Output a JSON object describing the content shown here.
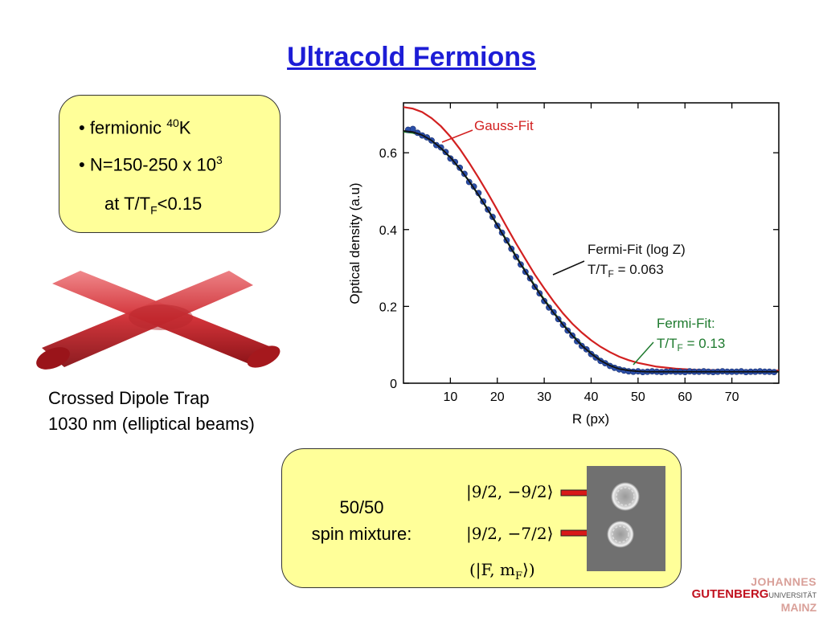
{
  "slide": {
    "title": "Ultracold Fermions"
  },
  "info_box": {
    "bullet1_prefix": "• fermionic ",
    "bullet1_sup": "40",
    "bullet1_suffix": "K",
    "bullet2_prefix": "• N=150-250 x 10",
    "bullet2_sup": "3",
    "bullet3_prefix": "at T/T",
    "bullet3_sub": "F",
    "bullet3_suffix": "<0.15"
  },
  "trap": {
    "caption_line1": "Crossed Dipole Trap",
    "caption_line2": "1030 nm (elliptical beams)",
    "beam_color": "#cc2a30"
  },
  "spin_box": {
    "text_line1": "50/50",
    "text_line2": "spin mixture:",
    "ket1": "|9/2, −9/2⟩",
    "ket2": "|9/2, −7/2⟩",
    "notation": "(|F, m",
    "notation_sub": "F",
    "notation_end": "⟩)",
    "arrow_color": "#d81818"
  },
  "logo": {
    "line1": "JOHANNES",
    "line2": "GUTENBERG",
    "line2_small": "UNIVERSITÄT",
    "line3": "MAINZ"
  },
  "chart_data": {
    "type": "line",
    "xlabel": "R (px)",
    "ylabel": "Optical density (a.u)",
    "xlim": [
      0,
      80
    ],
    "ylim": [
      0,
      0.73
    ],
    "xticks": [
      10,
      20,
      30,
      40,
      50,
      60,
      70
    ],
    "yticks": [
      0,
      0.2,
      0.4,
      0.6
    ],
    "ytick_labels": [
      "0",
      "0.2",
      "0.4",
      "0.6"
    ],
    "grid": false,
    "series": [
      {
        "name": "Gauss-Fit",
        "color": "#d22020",
        "x": [
          0,
          2,
          4,
          6,
          8,
          10,
          12,
          14,
          16,
          18,
          20,
          22,
          24,
          26,
          28,
          30,
          32,
          34,
          36,
          38,
          40,
          42,
          44,
          46,
          48,
          50,
          54,
          58,
          62,
          66,
          70,
          74,
          80
        ],
        "y": [
          0.719,
          0.715,
          0.706,
          0.69,
          0.669,
          0.642,
          0.61,
          0.574,
          0.535,
          0.494,
          0.451,
          0.407,
          0.364,
          0.323,
          0.283,
          0.247,
          0.213,
          0.182,
          0.155,
          0.132,
          0.112,
          0.095,
          0.081,
          0.069,
          0.06,
          0.053,
          0.043,
          0.038,
          0.035,
          0.034,
          0.033,
          0.033,
          0.033
        ]
      },
      {
        "name": "Fermi-Fit (log Z)",
        "annotation": "T/T",
        "annotation_sub": "F",
        "annotation_value": " = 0.063",
        "color": "#111111",
        "x": [
          0,
          2,
          4,
          6,
          8,
          10,
          12,
          14,
          16,
          18,
          20,
          22,
          24,
          26,
          28,
          30,
          32,
          34,
          36,
          38,
          40,
          42,
          44,
          46,
          48,
          50,
          52,
          56,
          60,
          70,
          80
        ],
        "y": [
          0.657,
          0.654,
          0.646,
          0.632,
          0.612,
          0.588,
          0.559,
          0.526,
          0.49,
          0.451,
          0.411,
          0.37,
          0.329,
          0.29,
          0.252,
          0.216,
          0.183,
          0.152,
          0.124,
          0.098,
          0.077,
          0.059,
          0.046,
          0.037,
          0.033,
          0.031,
          0.03,
          0.03,
          0.03,
          0.03,
          0.03
        ]
      },
      {
        "name": "Fermi-Fit:",
        "annotation": "T/T",
        "annotation_sub": "F",
        "annotation_value": " = 0.13",
        "color": "#1e7a2e",
        "x": [
          0,
          2,
          4,
          6,
          8,
          10,
          12,
          14,
          16,
          18,
          20,
          22,
          24,
          26,
          28,
          30,
          32,
          34,
          36,
          38,
          40,
          42,
          44,
          46,
          48,
          50,
          52,
          56,
          60,
          70,
          80
        ],
        "y": [
          0.655,
          0.652,
          0.644,
          0.63,
          0.611,
          0.587,
          0.558,
          0.526,
          0.49,
          0.452,
          0.412,
          0.372,
          0.331,
          0.292,
          0.254,
          0.218,
          0.185,
          0.154,
          0.126,
          0.101,
          0.08,
          0.062,
          0.049,
          0.04,
          0.035,
          0.032,
          0.031,
          0.03,
          0.03,
          0.03,
          0.03
        ]
      },
      {
        "name": "data",
        "color": "#2a4ea8",
        "x": [
          1,
          2,
          3,
          4,
          5,
          6,
          7,
          8,
          9,
          10,
          11,
          12,
          13,
          14,
          15,
          16,
          17,
          18,
          19,
          20,
          21,
          22,
          23,
          24,
          25,
          26,
          27,
          28,
          29,
          30,
          31,
          32,
          33,
          34,
          35,
          36,
          37,
          38,
          39,
          40,
          41,
          42,
          43,
          44,
          45,
          46,
          47,
          48,
          49,
          50,
          51,
          52,
          53,
          54,
          55,
          56,
          57,
          58,
          59,
          60,
          61,
          62,
          63,
          64,
          65,
          66,
          67,
          68,
          69,
          70,
          71,
          72,
          73,
          74,
          75,
          76,
          77,
          78,
          79
        ],
        "y": [
          0.66,
          0.662,
          0.652,
          0.645,
          0.64,
          0.632,
          0.62,
          0.614,
          0.602,
          0.585,
          0.576,
          0.561,
          0.545,
          0.524,
          0.512,
          0.495,
          0.473,
          0.452,
          0.433,
          0.41,
          0.392,
          0.372,
          0.35,
          0.329,
          0.309,
          0.29,
          0.273,
          0.251,
          0.234,
          0.214,
          0.197,
          0.185,
          0.167,
          0.152,
          0.137,
          0.124,
          0.109,
          0.097,
          0.088,
          0.076,
          0.067,
          0.058,
          0.052,
          0.045,
          0.04,
          0.036,
          0.033,
          0.031,
          0.03,
          0.031,
          0.029,
          0.03,
          0.031,
          0.03,
          0.029,
          0.03,
          0.031,
          0.03,
          0.03,
          0.029,
          0.031,
          0.03,
          0.03,
          0.031,
          0.03,
          0.029,
          0.03,
          0.031,
          0.03,
          0.03,
          0.03,
          0.031,
          0.029,
          0.03,
          0.03,
          0.031,
          0.03,
          0.03,
          0.029
        ]
      }
    ]
  }
}
